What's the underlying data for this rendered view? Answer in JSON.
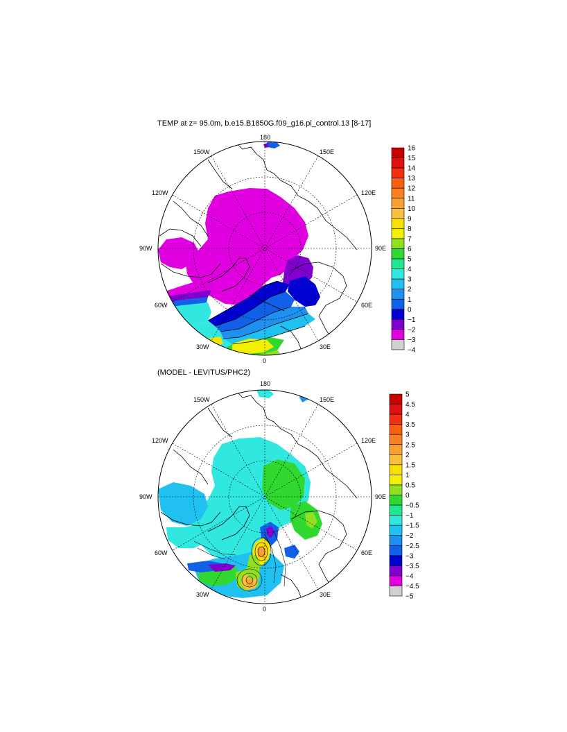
{
  "top_title": "TEMP at z=  95.0m, b.e15.B1850G.f09_g16.pi_control.13 [8-17]",
  "bottom_title": "(MODEL - LEVITUS/PHC2)",
  "lon_labels": [
    "180",
    "150E",
    "120E",
    "90E",
    "60E",
    "30E",
    "0",
    "30W",
    "60W",
    "90W",
    "120W",
    "150W"
  ],
  "colorbar_top": {
    "labels": [
      "16",
      "15",
      "14",
      "13",
      "12",
      "11",
      "10",
      "9",
      "8",
      "7",
      "6",
      "5",
      "4",
      "3",
      "2",
      "1",
      "0",
      "−1",
      "−2",
      "−3",
      "−4"
    ],
    "colors": [
      "#c80000",
      "#e01010",
      "#f03010",
      "#f86010",
      "#f88020",
      "#f8a030",
      "#f8c040",
      "#f8e000",
      "#f0f000",
      "#90e020",
      "#30d830",
      "#20e890",
      "#30e8e0",
      "#20c0f0",
      "#2090f0",
      "#1060e8",
      "#0000d0",
      "#8000d0",
      "#e000e0",
      "#d0d0d0",
      "#707070"
    ]
  },
  "colorbar_bottom": {
    "labels": [
      "5",
      "4.5",
      "4",
      "3.5",
      "3",
      "2.5",
      "2",
      "1.5",
      "1",
      "0.5",
      "0",
      "−0.5",
      "−1",
      "−1.5",
      "−2",
      "−2.5",
      "−3",
      "−3.5",
      "−4",
      "−4.5",
      "−5"
    ],
    "colors": [
      "#c80000",
      "#e01010",
      "#f03010",
      "#f86010",
      "#f88020",
      "#f8a030",
      "#f8c040",
      "#f8e000",
      "#f0f000",
      "#90e020",
      "#30d830",
      "#20e890",
      "#30e8e0",
      "#20c0f0",
      "#2090f0",
      "#1060e8",
      "#0000d0",
      "#8000d0",
      "#e000e0",
      "#d0d0d0",
      "#707070"
    ]
  }
}
